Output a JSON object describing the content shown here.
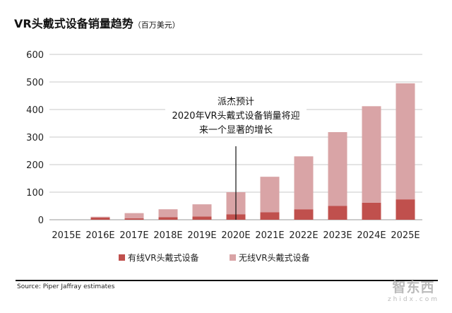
{
  "chart_data": {
    "type": "bar",
    "stacked": true,
    "title": "VR头戴式设备销量趋势",
    "unit_label": "（百万美元）",
    "categories": [
      "2015E",
      "2016E",
      "2017E",
      "2018E",
      "2019E",
      "2020E",
      "2021E",
      "2022E",
      "2023E",
      "2024E",
      "2025E"
    ],
    "series": [
      {
        "name": "有线VR头戴式设备",
        "color": "#c0504d",
        "values": [
          0,
          8,
          5,
          9,
          12,
          20,
          27,
          38,
          50,
          62,
          74
        ]
      },
      {
        "name": "无线VR头戴式设备",
        "color": "#d9a4a6",
        "values": [
          0,
          3,
          19,
          29,
          44,
          80,
          129,
          192,
          268,
          350,
          421
        ]
      }
    ],
    "ylim": [
      0,
      600
    ],
    "yticks": [
      0,
      100,
      200,
      300,
      400,
      500,
      600
    ],
    "grid": true,
    "legend": "bottom",
    "annotation": {
      "lines": [
        "派杰预计",
        "2020年VR头戴式设备销量将迎",
        "来一个显著的增长"
      ],
      "category": "2020E"
    },
    "source": "Source: Piper Jaffray estimates"
  },
  "watermark": {
    "logo": "智东西",
    "url": "zhidx.com"
  }
}
